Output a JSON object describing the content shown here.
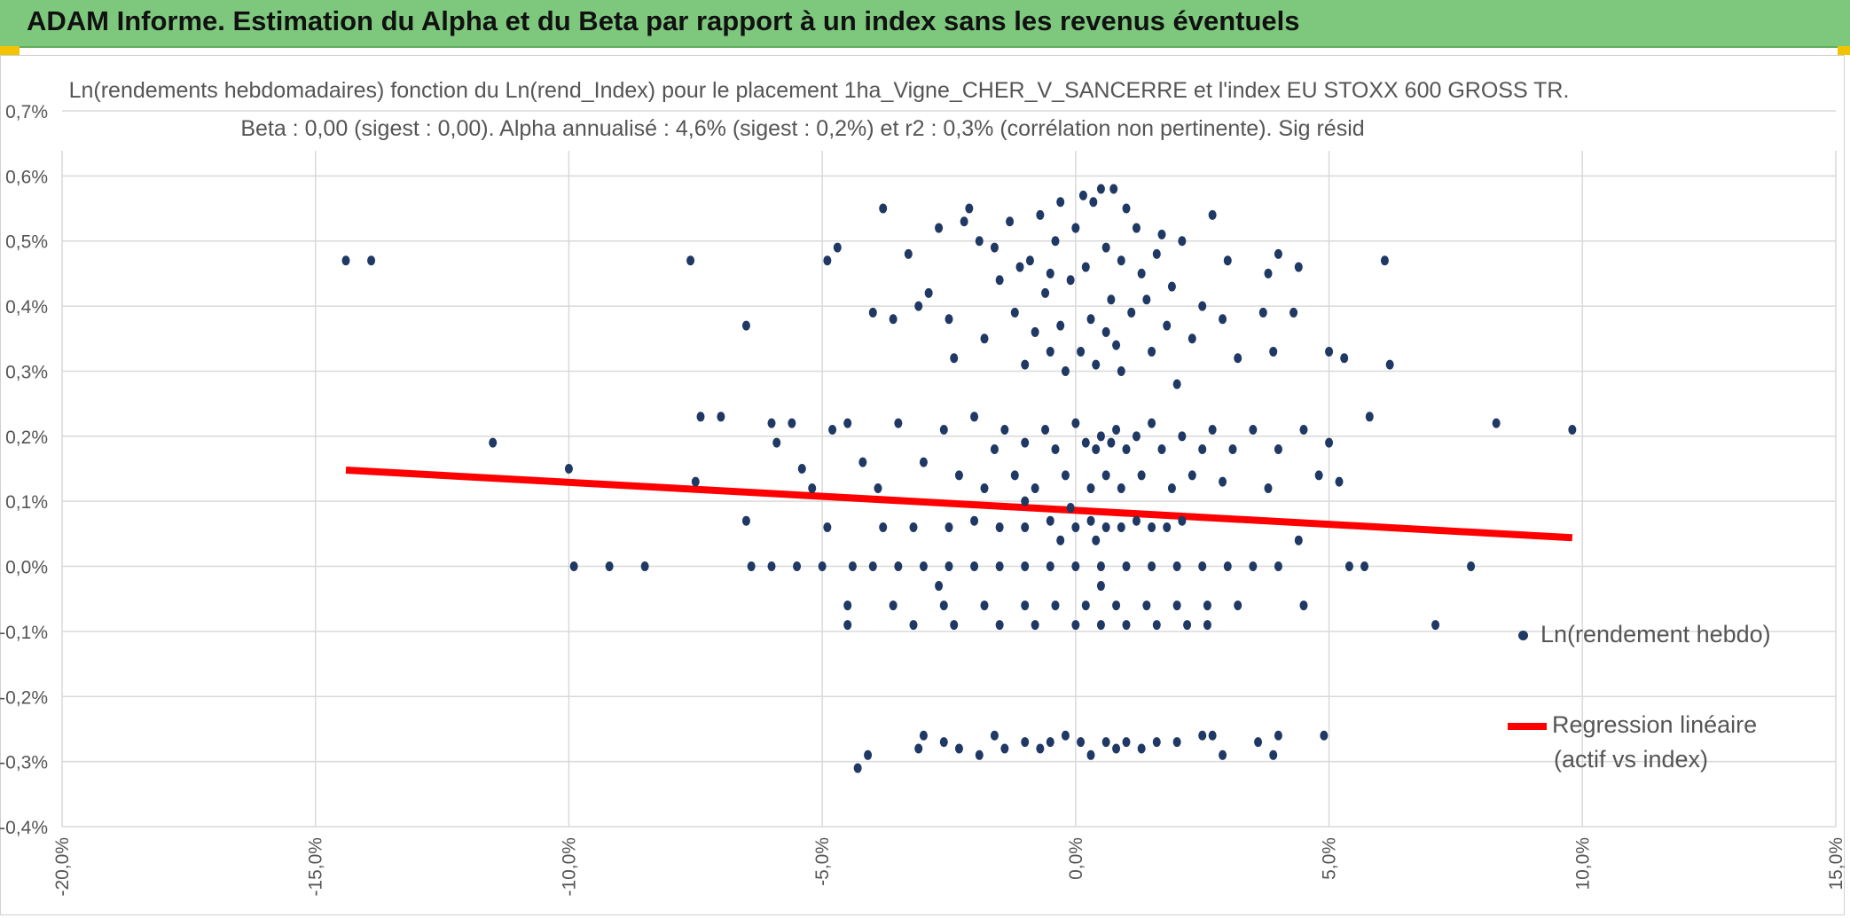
{
  "header": {
    "title": "ADAM Informe. Estimation du Alpha et du Beta par rapport à un index sans les revenus éventuels",
    "background": "#7dc87d"
  },
  "chart_data": {
    "type": "scatter",
    "title_line1": "Ln(rendements hebdomadaires) fonction du Ln(rend_Index) pour le placement 1ha_Vigne_CHER_V_SANCERRE et l'index EU STOXX 600 GROSS TR.",
    "title_line2": "Beta : 0,00 (sigest : 0,00). Alpha annualisé : 4,6% (sigest : 0,2%) et r2 : 0,3% (corrélation non pertinente). Sig résid",
    "xlabel": "",
    "ylabel": "",
    "xlim": [
      -20,
      15
    ],
    "ylim": [
      -0.4,
      0.7
    ],
    "x_ticks": [
      -20,
      -15,
      -10,
      -5,
      0,
      5,
      10,
      15
    ],
    "x_tick_labels": [
      "-20,0%",
      "-15,0%",
      "-10,0%",
      "-5,0%",
      "0,0%",
      "5,0%",
      "10,0%",
      "15,0%"
    ],
    "y_ticks": [
      0.7,
      0.6,
      0.5,
      0.4,
      0.3,
      0.2,
      0.1,
      0.0,
      -0.1,
      -0.2,
      -0.3,
      -0.4
    ],
    "y_tick_labels": [
      "0,7%",
      "0,6%",
      "0,5%",
      "0,4%",
      "0,3%",
      "0,2%",
      "0,1%",
      "0,0%",
      "-0,1%",
      "-0,2%",
      "-0,3%",
      "-0,4%"
    ],
    "grid": true,
    "point_color": "#1f3864",
    "line_color": "#ff0000",
    "series": [
      {
        "name": "Ln(rendement hebdo)",
        "kind": "scatter",
        "points": [
          [
            -14.4,
            0.47
          ],
          [
            -13.9,
            0.47
          ],
          [
            -7.6,
            0.47
          ],
          [
            -11.5,
            0.19
          ],
          [
            -10.0,
            0.15
          ],
          [
            -7.5,
            0.13
          ],
          [
            -7.4,
            0.23
          ],
          [
            -7.0,
            0.23
          ],
          [
            -6.5,
            0.37
          ],
          [
            -6.0,
            0.22
          ],
          [
            -5.9,
            0.19
          ],
          [
            -5.6,
            0.22
          ],
          [
            -5.4,
            0.15
          ],
          [
            -5.2,
            0.12
          ],
          [
            -4.9,
            0.47
          ],
          [
            -4.7,
            0.49
          ],
          [
            -4.5,
            0.22
          ],
          [
            -4.2,
            0.16
          ],
          [
            -4.0,
            0.39
          ],
          [
            -3.8,
            0.55
          ],
          [
            -3.6,
            0.38
          ],
          [
            -3.5,
            0.22
          ],
          [
            -3.3,
            0.48
          ],
          [
            -3.1,
            0.4
          ],
          [
            -2.9,
            0.42
          ],
          [
            -2.7,
            0.52
          ],
          [
            -2.5,
            0.38
          ],
          [
            -2.4,
            0.32
          ],
          [
            -2.2,
            0.53
          ],
          [
            -2.1,
            0.55
          ],
          [
            -1.8,
            0.35
          ],
          [
            -1.6,
            0.49
          ],
          [
            -1.5,
            0.44
          ],
          [
            -1.3,
            0.53
          ],
          [
            -1.2,
            0.39
          ],
          [
            -1.0,
            0.31
          ],
          [
            -0.9,
            0.47
          ],
          [
            -0.8,
            0.36
          ],
          [
            -0.7,
            0.54
          ],
          [
            -0.6,
            0.42
          ],
          [
            -0.5,
            0.33
          ],
          [
            -0.4,
            0.5
          ],
          [
            -0.3,
            0.37
          ],
          [
            -0.2,
            0.3
          ],
          [
            -0.1,
            0.44
          ],
          [
            0.0,
            0.52
          ],
          [
            0.1,
            0.33
          ],
          [
            0.15,
            0.57
          ],
          [
            0.2,
            0.46
          ],
          [
            0.3,
            0.38
          ],
          [
            0.35,
            0.56
          ],
          [
            0.4,
            0.31
          ],
          [
            0.5,
            0.58
          ],
          [
            0.6,
            0.49
          ],
          [
            0.7,
            0.41
          ],
          [
            0.75,
            0.58
          ],
          [
            0.8,
            0.34
          ],
          [
            0.9,
            0.47
          ],
          [
            1.0,
            0.55
          ],
          [
            1.1,
            0.39
          ],
          [
            1.2,
            0.52
          ],
          [
            1.3,
            0.45
          ],
          [
            1.5,
            0.33
          ],
          [
            1.6,
            0.48
          ],
          [
            1.8,
            0.37
          ],
          [
            1.9,
            0.43
          ],
          [
            2.0,
            0.28
          ],
          [
            2.1,
            0.5
          ],
          [
            2.3,
            0.35
          ],
          [
            2.5,
            0.4
          ],
          [
            2.7,
            0.54
          ],
          [
            2.9,
            0.38
          ],
          [
            3.0,
            0.47
          ],
          [
            3.2,
            0.32
          ],
          [
            3.7,
            0.39
          ],
          [
            3.8,
            0.45
          ],
          [
            3.9,
            0.33
          ],
          [
            4.0,
            0.48
          ],
          [
            4.3,
            0.39
          ],
          [
            4.4,
            0.46
          ],
          [
            5.0,
            0.33
          ],
          [
            5.3,
            0.32
          ],
          [
            6.1,
            0.47
          ],
          [
            6.2,
            0.31
          ],
          [
            -0.5,
            0.45
          ],
          [
            -1.9,
            0.5
          ],
          [
            0.6,
            0.36
          ],
          [
            1.4,
            0.41
          ],
          [
            -0.3,
            0.56
          ],
          [
            0.9,
            0.3
          ],
          [
            -1.1,
            0.46
          ],
          [
            1.7,
            0.51
          ],
          [
            -4.8,
            0.21
          ],
          [
            -3.9,
            0.12
          ],
          [
            -3.0,
            0.16
          ],
          [
            -2.6,
            0.21
          ],
          [
            -2.3,
            0.14
          ],
          [
            -2.0,
            0.23
          ],
          [
            -1.8,
            0.12
          ],
          [
            -1.6,
            0.18
          ],
          [
            -1.4,
            0.21
          ],
          [
            -1.2,
            0.14
          ],
          [
            -1.0,
            0.19
          ],
          [
            -0.8,
            0.12
          ],
          [
            -0.6,
            0.21
          ],
          [
            -0.4,
            0.18
          ],
          [
            -0.2,
            0.14
          ],
          [
            0.0,
            0.22
          ],
          [
            0.2,
            0.19
          ],
          [
            0.3,
            0.12
          ],
          [
            0.4,
            0.18
          ],
          [
            0.5,
            0.2
          ],
          [
            0.6,
            0.14
          ],
          [
            0.7,
            0.19
          ],
          [
            0.8,
            0.21
          ],
          [
            0.9,
            0.12
          ],
          [
            1.0,
            0.18
          ],
          [
            1.2,
            0.2
          ],
          [
            1.3,
            0.14
          ],
          [
            1.5,
            0.22
          ],
          [
            1.7,
            0.18
          ],
          [
            1.9,
            0.12
          ],
          [
            2.1,
            0.2
          ],
          [
            2.3,
            0.14
          ],
          [
            2.5,
            0.18
          ],
          [
            2.7,
            0.21
          ],
          [
            2.9,
            0.13
          ],
          [
            3.1,
            0.18
          ],
          [
            3.5,
            0.21
          ],
          [
            3.8,
            0.12
          ],
          [
            4.0,
            0.18
          ],
          [
            4.5,
            0.21
          ],
          [
            4.8,
            0.14
          ],
          [
            5.0,
            0.19
          ],
          [
            5.2,
            0.13
          ],
          [
            5.8,
            0.23
          ],
          [
            8.3,
            0.22
          ],
          [
            9.8,
            0.21
          ],
          [
            -6.5,
            0.07
          ],
          [
            -4.9,
            0.06
          ],
          [
            -3.8,
            0.06
          ],
          [
            -3.2,
            0.06
          ],
          [
            -2.5,
            0.06
          ],
          [
            -2.0,
            0.07
          ],
          [
            -1.5,
            0.06
          ],
          [
            -1.0,
            0.06
          ],
          [
            -0.5,
            0.07
          ],
          [
            0.0,
            0.06
          ],
          [
            0.3,
            0.07
          ],
          [
            0.6,
            0.06
          ],
          [
            0.9,
            0.06
          ],
          [
            1.2,
            0.07
          ],
          [
            1.5,
            0.06
          ],
          [
            1.8,
            0.06
          ],
          [
            2.1,
            0.07
          ],
          [
            -0.3,
            0.04
          ],
          [
            0.4,
            0.04
          ],
          [
            4.4,
            0.04
          ],
          [
            -1.0,
            0.1
          ],
          [
            -0.1,
            0.09
          ],
          [
            -9.9,
            0.0
          ],
          [
            -9.2,
            0.0
          ],
          [
            -8.5,
            0.0
          ],
          [
            -6.4,
            0.0
          ],
          [
            -6.0,
            0.0
          ],
          [
            -5.5,
            0.0
          ],
          [
            -5.0,
            0.0
          ],
          [
            -4.4,
            0.0
          ],
          [
            -4.0,
            0.0
          ],
          [
            -3.5,
            0.0
          ],
          [
            -3.0,
            0.0
          ],
          [
            -2.5,
            0.0
          ],
          [
            -2.0,
            0.0
          ],
          [
            -1.5,
            0.0
          ],
          [
            -1.0,
            0.0
          ],
          [
            -0.5,
            0.0
          ],
          [
            0.0,
            0.0
          ],
          [
            0.5,
            0.0
          ],
          [
            1.0,
            0.0
          ],
          [
            1.5,
            0.0
          ],
          [
            2.0,
            0.0
          ],
          [
            2.5,
            0.0
          ],
          [
            3.0,
            0.0
          ],
          [
            3.5,
            0.0
          ],
          [
            4.0,
            0.0
          ],
          [
            5.4,
            0.0
          ],
          [
            5.7,
            0.0
          ],
          [
            7.8,
            0.0
          ],
          [
            -4.5,
            -0.06
          ],
          [
            -3.6,
            -0.06
          ],
          [
            -2.6,
            -0.06
          ],
          [
            -1.8,
            -0.06
          ],
          [
            -1.0,
            -0.06
          ],
          [
            -0.4,
            -0.06
          ],
          [
            0.2,
            -0.06
          ],
          [
            0.8,
            -0.06
          ],
          [
            1.4,
            -0.06
          ],
          [
            2.0,
            -0.06
          ],
          [
            2.6,
            -0.06
          ],
          [
            3.2,
            -0.06
          ],
          [
            4.5,
            -0.06
          ],
          [
            -4.5,
            -0.09
          ],
          [
            -3.2,
            -0.09
          ],
          [
            -2.4,
            -0.09
          ],
          [
            -1.5,
            -0.09
          ],
          [
            -0.8,
            -0.09
          ],
          [
            0.0,
            -0.09
          ],
          [
            0.5,
            -0.09
          ],
          [
            1.0,
            -0.09
          ],
          [
            1.6,
            -0.09
          ],
          [
            2.2,
            -0.09
          ],
          [
            2.6,
            -0.09
          ],
          [
            7.1,
            -0.09
          ],
          [
            -2.7,
            -0.03
          ],
          [
            0.5,
            -0.03
          ],
          [
            -4.3,
            -0.31
          ],
          [
            -4.1,
            -0.29
          ],
          [
            -3.1,
            -0.28
          ],
          [
            -3.0,
            -0.26
          ],
          [
            -2.6,
            -0.27
          ],
          [
            -2.3,
            -0.28
          ],
          [
            -1.9,
            -0.29
          ],
          [
            -1.6,
            -0.26
          ],
          [
            -1.4,
            -0.28
          ],
          [
            -1.0,
            -0.27
          ],
          [
            -0.7,
            -0.28
          ],
          [
            -0.5,
            -0.27
          ],
          [
            -0.2,
            -0.26
          ],
          [
            0.1,
            -0.27
          ],
          [
            0.3,
            -0.29
          ],
          [
            0.6,
            -0.27
          ],
          [
            0.8,
            -0.28
          ],
          [
            1.0,
            -0.27
          ],
          [
            1.3,
            -0.28
          ],
          [
            1.6,
            -0.27
          ],
          [
            2.0,
            -0.27
          ],
          [
            2.5,
            -0.26
          ],
          [
            2.7,
            -0.26
          ],
          [
            2.9,
            -0.29
          ],
          [
            3.6,
            -0.27
          ],
          [
            3.9,
            -0.29
          ],
          [
            4.0,
            -0.26
          ],
          [
            4.9,
            -0.26
          ]
        ]
      },
      {
        "name": "Regression linéaire (actif vs index)",
        "kind": "line",
        "points": [
          [
            -14.4,
            0.148
          ],
          [
            9.8,
            0.044
          ]
        ]
      }
    ],
    "legend": [
      {
        "label": "Ln(rendement hebdo)",
        "kind": "dot"
      },
      {
        "label_line1": "Regression linéaire",
        "label_line2": "(actif vs index)",
        "kind": "line"
      }
    ]
  }
}
